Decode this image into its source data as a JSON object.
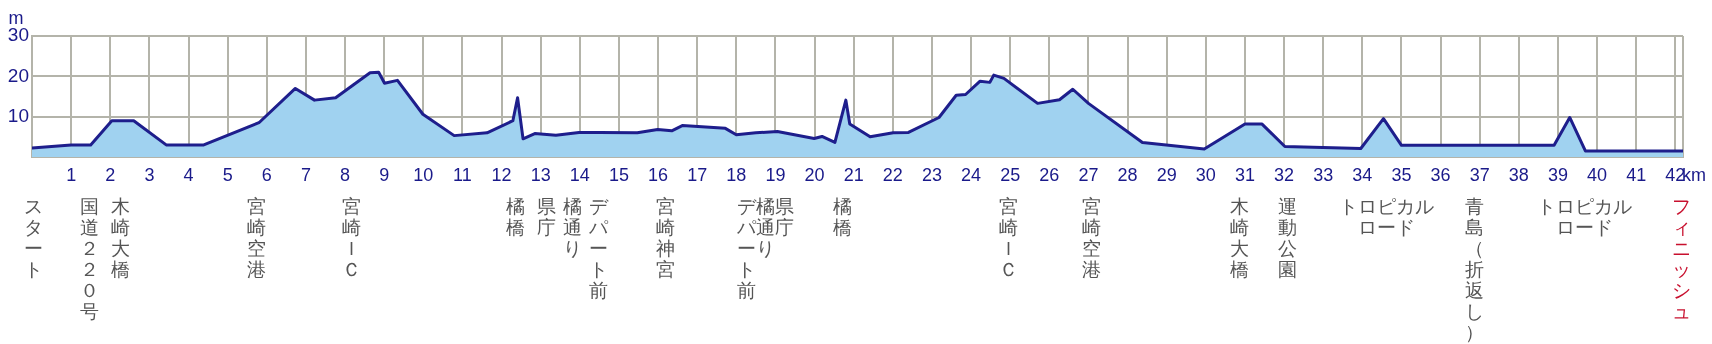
{
  "chart_data": {
    "type": "area",
    "xlabel": "km",
    "ylabel": "m",
    "xlim": [
      0,
      42.195
    ],
    "ylim": [
      0,
      30
    ],
    "xticks": [
      1,
      2,
      3,
      4,
      5,
      6,
      7,
      8,
      9,
      10,
      11,
      12,
      13,
      14,
      15,
      16,
      17,
      18,
      19,
      20,
      21,
      22,
      23,
      24,
      25,
      26,
      27,
      28,
      29,
      30,
      31,
      32,
      33,
      34,
      35,
      36,
      37,
      38,
      39,
      40,
      41,
      42
    ],
    "yticks": [
      {
        "value": 0,
        "label": null
      },
      10,
      20,
      30
    ],
    "grid": true,
    "legend": false,
    "marker": "none",
    "series": [
      {
        "color": "#1e1e8c",
        "x": [
          0,
          1,
          1.5,
          2.04,
          2.6,
          3.43,
          4.39,
          5.8,
          6.73,
          7.22,
          7.76,
          8.64,
          8.86,
          9.01,
          9.34,
          9.99,
          10.79,
          11.63,
          12.29,
          12.41,
          12.55,
          12.85,
          13.39,
          13.98,
          14.5,
          15.47,
          15.99,
          16.35,
          16.62,
          17.72,
          18,
          18.5,
          19.05,
          19.99,
          20.19,
          20.52,
          20.8,
          20.9,
          21.42,
          22.01,
          22.4,
          23.18,
          23.62,
          23.86,
          24.23,
          24.48,
          24.58,
          24.84,
          25.7,
          26.26,
          26.6,
          27,
          28.38,
          29.96,
          31,
          31.43,
          32.02,
          33.96,
          34.54,
          35,
          38.9,
          39.3,
          39.7,
          42.195
        ],
        "values": [
          2.2,
          3,
          3,
          9,
          9,
          3,
          3,
          8.5,
          17,
          14.1,
          14.7,
          20.9,
          21,
          18.3,
          19,
          10.6,
          5.3,
          6,
          9,
          14.7,
          4.5,
          5.8,
          5.4,
          6.1,
          6.1,
          6,
          6.8,
          6.5,
          7.8,
          7.1,
          5.5,
          6,
          6.3,
          4.6,
          5.1,
          3.6,
          14.1,
          8.2,
          5,
          6,
          6.1,
          9.8,
          15.3,
          15.5,
          18.8,
          18.5,
          20.3,
          19.5,
          13.3,
          14.2,
          16.8,
          13.3,
          3.6,
          2,
          8.2,
          8.2,
          2.6,
          2.1,
          9.5,
          2.9,
          2.9,
          9.8,
          1.5,
          1.5
        ]
      }
    ],
    "annotations": [
      "スタート",
      "国道２２０号",
      "木崎大橋",
      "宮崎空港",
      "宮崎ＩＣ",
      "橘橋",
      "県庁",
      "橘通り",
      "デパート前",
      "宮崎神宮",
      "デパート前",
      "橘通り",
      "県庁",
      "橘橋",
      "宮崎ＩＣ",
      "宮崎空港",
      "木崎大橋",
      "運動公園",
      "トロピカルロード",
      "青島（折返し）",
      "トロピカルロード",
      "フィニッシュ"
    ]
  }
}
